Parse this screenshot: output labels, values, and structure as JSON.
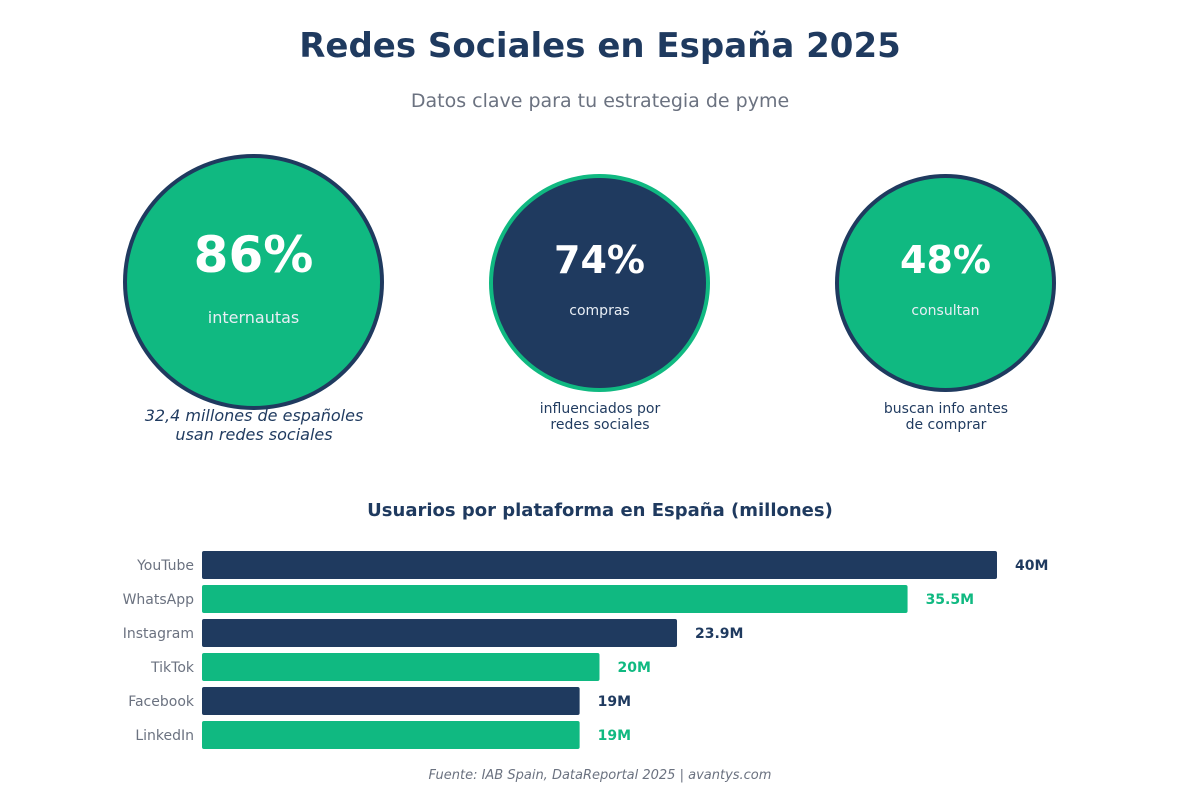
{
  "header": {
    "title": "Redes Sociales en España 2025",
    "subtitle": "Datos clave para tu estrategia de pyme"
  },
  "stats": [
    {
      "value": "86%",
      "label": "internautas",
      "caption": "32,4 millones de españoles\nusan redes sociales"
    },
    {
      "value": "74%",
      "label": "compras",
      "caption": "influenciados por\nredes sociales"
    },
    {
      "value": "48%",
      "label": "consultan",
      "caption": "buscan info antes\nde comprar"
    }
  ],
  "colors": {
    "navy": "#1f3a5f",
    "green": "#10b981",
    "gray": "#6b7280"
  },
  "chart_data": {
    "type": "bar",
    "orientation": "horizontal",
    "title": "Usuarios por plataforma en España (millones)",
    "categories": [
      "YouTube",
      "WhatsApp",
      "Instagram",
      "TikTok",
      "Facebook",
      "LinkedIn"
    ],
    "values": [
      40,
      35.5,
      23.9,
      20,
      19,
      19
    ],
    "value_labels": [
      "40M",
      "35.5M",
      "23.9M",
      "20M",
      "19M",
      "19M"
    ],
    "xlim": [
      0,
      40
    ],
    "grid": false,
    "bar_colors": [
      "#1f3a5f",
      "#10b981",
      "#1f3a5f",
      "#10b981",
      "#1f3a5f",
      "#10b981"
    ]
  },
  "footer": {
    "source": "Fuente: IAB Spain, DataReportal 2025 | avantys.com"
  }
}
